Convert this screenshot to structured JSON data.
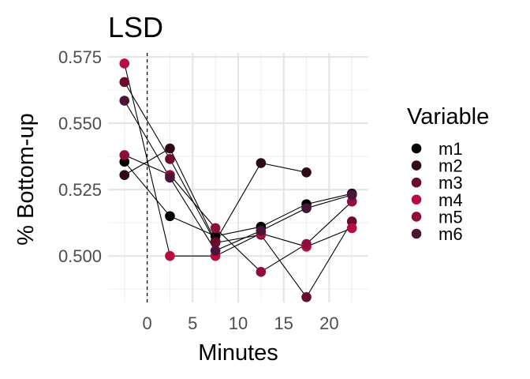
{
  "chart_data": {
    "type": "line",
    "title": "LSD",
    "xlabel": "Minutes",
    "ylabel": "% Bottom-up",
    "xlim": [
      -4.3,
      24.3
    ],
    "ylim": [
      0.4825,
      0.5765
    ],
    "x_ticks": [
      0,
      5,
      10,
      15,
      20
    ],
    "x_tick_labels": [
      "0",
      "5",
      "10",
      "15",
      "20"
    ],
    "y_ticks": [
      0.5,
      0.525,
      0.55,
      0.575
    ],
    "y_tick_labels": [
      "0.500",
      "0.525",
      "0.550",
      "0.575"
    ],
    "reference_line": {
      "x": 0,
      "style": "dashed",
      "color": "#000000"
    },
    "grid": true,
    "legend": {
      "title": "Variable",
      "placement": "right"
    },
    "colors": {
      "m1": "#000000",
      "m2": "#2e0a12",
      "m3": "#6b0a2a",
      "m4": "#b50d3e",
      "m5": "#8f0e3f",
      "m6": "#4a1538"
    },
    "series": [
      {
        "name": "m1",
        "x": [
          -2.5,
          2.5,
          7.5,
          12.5,
          17.5,
          22.5
        ],
        "y": [
          0.5355,
          0.515,
          0.5075,
          0.511,
          0.5195,
          0.5235
        ]
      },
      {
        "name": "m2",
        "x": [
          -2.5,
          2.5,
          7.5,
          12.5,
          17.5
        ],
        "y": [
          0.5305,
          0.5405,
          0.5055,
          0.535,
          0.5315
        ]
      },
      {
        "name": "m3",
        "x": [
          -2.5,
          2.5,
          7.5,
          12.5,
          17.5,
          22.5
        ],
        "y": [
          0.5655,
          0.5365,
          0.505,
          0.508,
          0.4845,
          0.513
        ]
      },
      {
        "name": "m4",
        "x": [
          -2.5,
          2.5,
          7.5,
          12.5,
          17.5,
          22.5
        ],
        "y": [
          0.5725,
          0.5,
          0.5,
          0.5085,
          0.5035,
          0.5105
        ]
      },
      {
        "name": "m5",
        "x": [
          -2.5,
          2.5,
          7.5,
          12.5,
          17.5,
          22.5
        ],
        "y": [
          0.538,
          0.5305,
          0.5105,
          0.494,
          0.5045,
          0.5205
        ]
      },
      {
        "name": "m6",
        "x": [
          -2.5,
          2.5,
          7.5,
          12.5,
          17.5,
          22.5
        ],
        "y": [
          0.5585,
          0.5295,
          0.502,
          0.5095,
          0.518,
          0.523
        ]
      }
    ]
  }
}
